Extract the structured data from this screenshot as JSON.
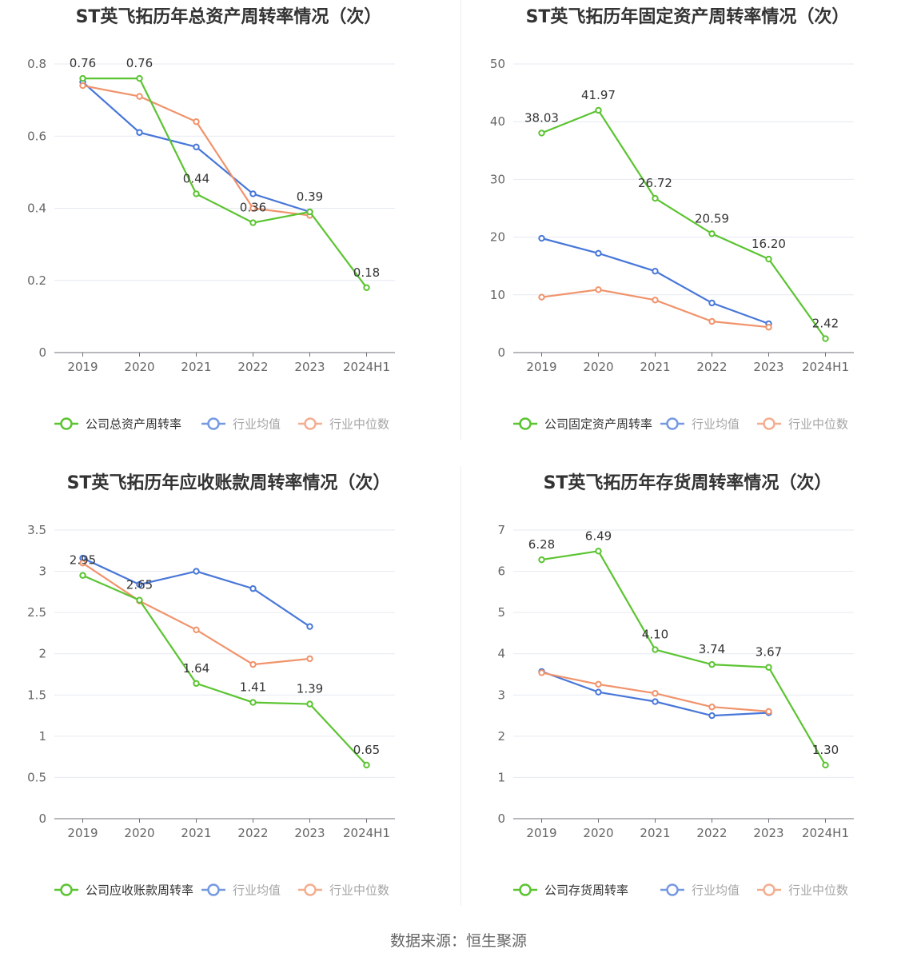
{
  "footer": {
    "source": "数据来源：恒生聚源"
  },
  "colors": {
    "company": "#5bc431",
    "avg": "#4877d8",
    "median": "#f0936b",
    "grid": "#e6e9f2",
    "axis": "#6e7079"
  },
  "chart_data": [
    {
      "type": "line",
      "title": "ST英飞拓历年总资产周转率情况（次）",
      "categories": [
        "2019",
        "2020",
        "2021",
        "2022",
        "2023",
        "2024H1"
      ],
      "ylim": [
        0,
        0.8
      ],
      "yticks": [
        0,
        0.2,
        0.4,
        0.6,
        0.8
      ],
      "ytick_labels": [
        "0",
        "0.2",
        "0.4",
        "0.6",
        "0.8"
      ],
      "grid": true,
      "legend_position": "bottom",
      "series": [
        {
          "name": "公司总资产周转率",
          "key": "company",
          "values": [
            0.76,
            0.76,
            0.44,
            0.36,
            0.39,
            0.18
          ],
          "labels": [
            "0.76",
            "0.76",
            "0.44",
            "0.36",
            "0.39",
            "0.18"
          ]
        },
        {
          "name": "行业均值",
          "key": "avg",
          "values": [
            0.75,
            0.61,
            0.57,
            0.44,
            0.39,
            null
          ]
        },
        {
          "name": "行业中位数",
          "key": "median",
          "values": [
            0.74,
            0.71,
            0.64,
            0.4,
            0.38,
            null
          ]
        }
      ]
    },
    {
      "type": "line",
      "title": "ST英飞拓历年固定资产周转率情况（次）",
      "categories": [
        "2019",
        "2020",
        "2021",
        "2022",
        "2023",
        "2024H1"
      ],
      "ylim": [
        0,
        50
      ],
      "yticks": [
        0,
        10,
        20,
        30,
        40,
        50
      ],
      "ytick_labels": [
        "0",
        "10",
        "20",
        "30",
        "40",
        "50"
      ],
      "grid": true,
      "legend_position": "bottom",
      "series": [
        {
          "name": "公司固定资产周转率",
          "key": "company",
          "values": [
            38.03,
            41.97,
            26.72,
            20.59,
            16.2,
            2.42
          ],
          "labels": [
            "38.03",
            "41.97",
            "26.72",
            "20.59",
            "16.20",
            "2.42"
          ]
        },
        {
          "name": "行业均值",
          "key": "avg",
          "values": [
            19.8,
            17.2,
            14.1,
            8.6,
            5.0,
            null
          ]
        },
        {
          "name": "行业中位数",
          "key": "median",
          "values": [
            9.6,
            10.9,
            9.1,
            5.4,
            4.4,
            null
          ]
        }
      ]
    },
    {
      "type": "line",
      "title": "ST英飞拓历年应收账款周转率情况（次）",
      "categories": [
        "2019",
        "2020",
        "2021",
        "2022",
        "2023",
        "2024H1"
      ],
      "ylim": [
        0,
        3.5
      ],
      "yticks": [
        0,
        0.5,
        1,
        1.5,
        2,
        2.5,
        3,
        3.5
      ],
      "ytick_labels": [
        "0",
        "0.5",
        "1",
        "1.5",
        "2",
        "2.5",
        "3",
        "3.5"
      ],
      "grid": true,
      "legend_position": "bottom",
      "series": [
        {
          "name": "公司应收账款周转率",
          "key": "company",
          "values": [
            2.95,
            2.65,
            1.64,
            1.41,
            1.39,
            0.65
          ],
          "labels": [
            "2.95",
            "2.65",
            "1.64",
            "1.41",
            "1.39",
            "0.65"
          ]
        },
        {
          "name": "行业均值",
          "key": "avg",
          "values": [
            3.16,
            2.84,
            3.0,
            2.79,
            2.33,
            null
          ]
        },
        {
          "name": "行业中位数",
          "key": "median",
          "values": [
            3.1,
            2.64,
            2.29,
            1.87,
            1.94,
            null
          ]
        }
      ]
    },
    {
      "type": "line",
      "title": "ST英飞拓历年存货周转率情况（次）",
      "categories": [
        "2019",
        "2020",
        "2021",
        "2022",
        "2023",
        "2024H1"
      ],
      "ylim": [
        0,
        7
      ],
      "yticks": [
        0,
        1,
        2,
        3,
        4,
        5,
        6,
        7
      ],
      "ytick_labels": [
        "0",
        "1",
        "2",
        "3",
        "4",
        "5",
        "6",
        "7"
      ],
      "grid": true,
      "legend_position": "bottom",
      "series": [
        {
          "name": "公司存货周转率",
          "key": "company",
          "values": [
            6.28,
            6.49,
            4.1,
            3.74,
            3.67,
            1.3
          ],
          "labels": [
            "6.28",
            "6.49",
            "4.10",
            "3.74",
            "3.67",
            "1.30"
          ]
        },
        {
          "name": "行业均值",
          "key": "avg",
          "values": [
            3.57,
            3.07,
            2.84,
            2.5,
            2.57,
            null
          ]
        },
        {
          "name": "行业中位数",
          "key": "median",
          "values": [
            3.54,
            3.26,
            3.04,
            2.71,
            2.6,
            null
          ]
        }
      ]
    }
  ]
}
